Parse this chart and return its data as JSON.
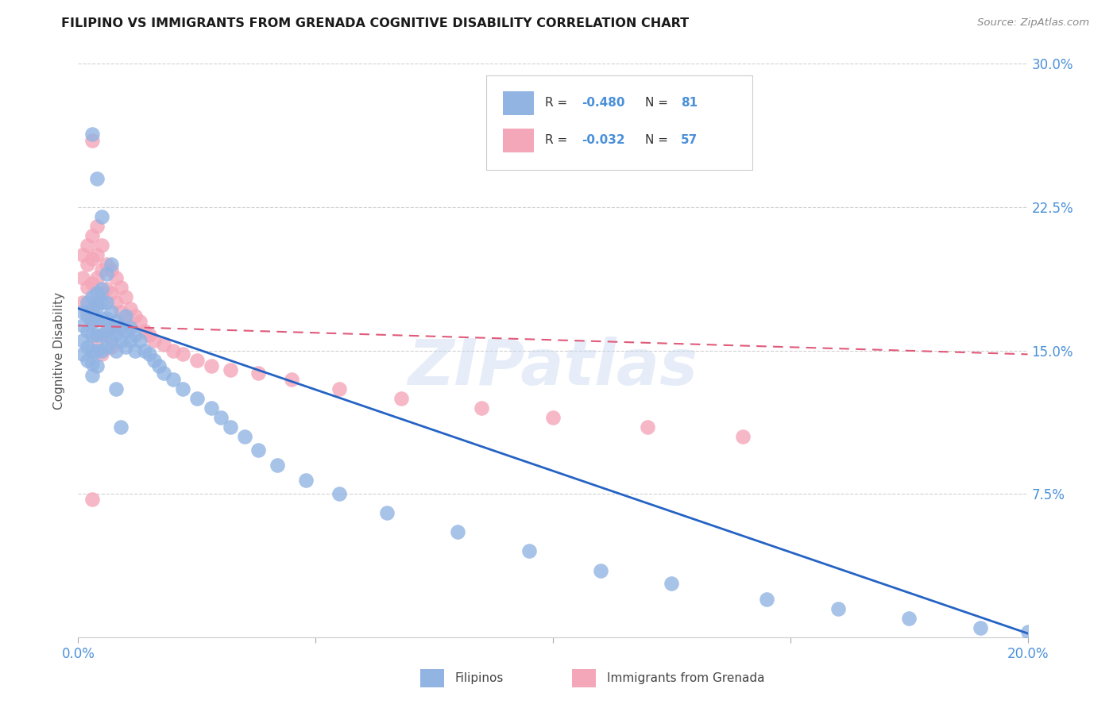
{
  "title": "FILIPINO VS IMMIGRANTS FROM GRENADA COGNITIVE DISABILITY CORRELATION CHART",
  "source": "Source: ZipAtlas.com",
  "ylabel_label": "Cognitive Disability",
  "xlim": [
    0.0,
    0.2
  ],
  "ylim": [
    0.0,
    0.3
  ],
  "xticks": [
    0.0,
    0.05,
    0.1,
    0.15,
    0.2
  ],
  "yticks": [
    0.0,
    0.075,
    0.15,
    0.225,
    0.3
  ],
  "blue_R": -0.48,
  "blue_N": 81,
  "pink_R": -0.032,
  "pink_N": 57,
  "blue_color": "#92b4e3",
  "pink_color": "#f4a7b9",
  "blue_line_color": "#2563c4",
  "pink_line_color": "#e05a7a",
  "grid_color": "#cccccc",
  "background_color": "#ffffff",
  "watermark_text": "ZIPatlas",
  "legend_label_blue": "Filipinos",
  "legend_label_pink": "Immigrants from Grenada",
  "blue_scatter_x": [
    0.001,
    0.001,
    0.001,
    0.001,
    0.002,
    0.002,
    0.002,
    0.002,
    0.002,
    0.003,
    0.003,
    0.003,
    0.003,
    0.003,
    0.003,
    0.003,
    0.004,
    0.004,
    0.004,
    0.004,
    0.004,
    0.004,
    0.005,
    0.005,
    0.005,
    0.005,
    0.005,
    0.006,
    0.006,
    0.006,
    0.006,
    0.007,
    0.007,
    0.007,
    0.008,
    0.008,
    0.008,
    0.009,
    0.009,
    0.01,
    0.01,
    0.01,
    0.011,
    0.011,
    0.012,
    0.012,
    0.013,
    0.014,
    0.015,
    0.016,
    0.017,
    0.018,
    0.02,
    0.022,
    0.025,
    0.028,
    0.03,
    0.032,
    0.035,
    0.038,
    0.042,
    0.048,
    0.055,
    0.065,
    0.08,
    0.095,
    0.11,
    0.125,
    0.145,
    0.16,
    0.175,
    0.19,
    0.2,
    0.003,
    0.004,
    0.005,
    0.006,
    0.007,
    0.008,
    0.009
  ],
  "blue_scatter_y": [
    0.17,
    0.163,
    0.155,
    0.148,
    0.175,
    0.168,
    0.16,
    0.152,
    0.145,
    0.178,
    0.172,
    0.165,
    0.158,
    0.15,
    0.143,
    0.137,
    0.18,
    0.173,
    0.166,
    0.158,
    0.15,
    0.142,
    0.182,
    0.175,
    0.167,
    0.158,
    0.15,
    0.175,
    0.167,
    0.16,
    0.152,
    0.17,
    0.162,
    0.155,
    0.165,
    0.158,
    0.15,
    0.162,
    0.155,
    0.168,
    0.16,
    0.152,
    0.162,
    0.155,
    0.158,
    0.15,
    0.155,
    0.15,
    0.148,
    0.145,
    0.142,
    0.138,
    0.135,
    0.13,
    0.125,
    0.12,
    0.115,
    0.11,
    0.105,
    0.098,
    0.09,
    0.082,
    0.075,
    0.065,
    0.055,
    0.045,
    0.035,
    0.028,
    0.02,
    0.015,
    0.01,
    0.005,
    0.003,
    0.263,
    0.24,
    0.22,
    0.19,
    0.195,
    0.13,
    0.11
  ],
  "pink_scatter_x": [
    0.001,
    0.001,
    0.001,
    0.002,
    0.002,
    0.002,
    0.002,
    0.003,
    0.003,
    0.003,
    0.003,
    0.004,
    0.004,
    0.004,
    0.004,
    0.005,
    0.005,
    0.005,
    0.006,
    0.006,
    0.007,
    0.007,
    0.008,
    0.008,
    0.009,
    0.009,
    0.01,
    0.01,
    0.011,
    0.012,
    0.013,
    0.014,
    0.015,
    0.016,
    0.018,
    0.02,
    0.022,
    0.025,
    0.028,
    0.032,
    0.038,
    0.045,
    0.055,
    0.068,
    0.085,
    0.1,
    0.12,
    0.14,
    0.003,
    0.004,
    0.005,
    0.006,
    0.007,
    0.008,
    0.003,
    0.003
  ],
  "pink_scatter_y": [
    0.2,
    0.188,
    0.175,
    0.205,
    0.195,
    0.183,
    0.17,
    0.21,
    0.198,
    0.185,
    0.172,
    0.215,
    0.2,
    0.188,
    0.175,
    0.205,
    0.192,
    0.18,
    0.195,
    0.182,
    0.192,
    0.18,
    0.188,
    0.175,
    0.183,
    0.17,
    0.178,
    0.165,
    0.172,
    0.168,
    0.165,
    0.16,
    0.158,
    0.155,
    0.153,
    0.15,
    0.148,
    0.145,
    0.142,
    0.14,
    0.138,
    0.135,
    0.13,
    0.125,
    0.12,
    0.115,
    0.11,
    0.105,
    0.165,
    0.155,
    0.148,
    0.158,
    0.152,
    0.162,
    0.26,
    0.072
  ],
  "blue_line_x": [
    0.0,
    0.2
  ],
  "blue_line_y": [
    0.172,
    0.002
  ],
  "pink_line_x": [
    0.0,
    0.2
  ],
  "pink_line_y": [
    0.163,
    0.148
  ]
}
